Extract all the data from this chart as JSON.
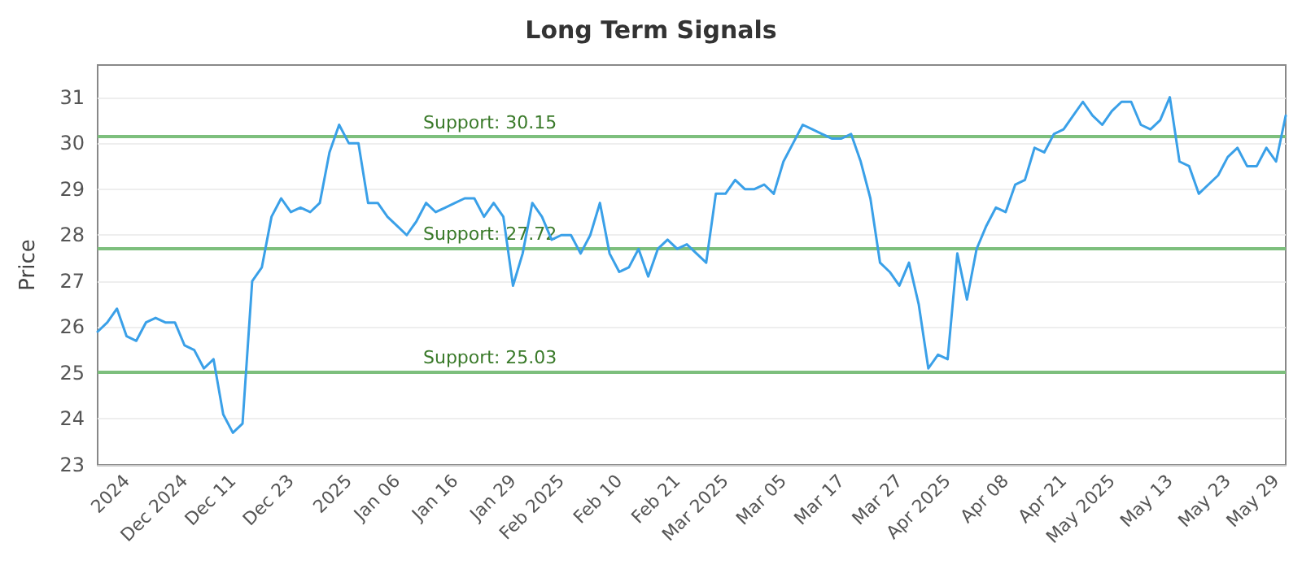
{
  "chart_data": {
    "type": "line",
    "title": "Long Term Signals",
    "ylabel": "Price",
    "categories": [
      null,
      null,
      null,
      "2024",
      null,
      null,
      null,
      null,
      null,
      "Dec 2024",
      null,
      null,
      null,
      null,
      "Dec 11",
      null,
      null,
      null,
      null,
      null,
      "Dec 23",
      null,
      null,
      null,
      null,
      null,
      "2025",
      null,
      null,
      null,
      null,
      "Jan 06",
      null,
      null,
      null,
      null,
      null,
      "Jan 16",
      null,
      null,
      null,
      null,
      null,
      "Jan 29",
      null,
      null,
      null,
      null,
      "Feb 2025",
      null,
      null,
      null,
      null,
      null,
      "Feb 10",
      null,
      null,
      null,
      null,
      null,
      "Feb 21",
      null,
      null,
      null,
      null,
      "Mar 2025",
      null,
      null,
      null,
      null,
      null,
      "Mar 05",
      null,
      null,
      null,
      null,
      null,
      "Mar 17",
      null,
      null,
      null,
      null,
      null,
      "Mar 27",
      null,
      null,
      null,
      null,
      "Apr 2025",
      null,
      null,
      null,
      null,
      null,
      "Apr 08",
      null,
      null,
      null,
      null,
      null,
      "Apr 21",
      null,
      null,
      null,
      null,
      "May 2025",
      null,
      null,
      null,
      null,
      null,
      "May 13",
      null,
      null,
      null,
      null,
      null,
      "May 23",
      null,
      null,
      null,
      null,
      "May 29",
      null
    ],
    "series": [
      {
        "color": "#3aa0e8",
        "values": [
          25.9,
          26.1,
          26.4,
          25.8,
          25.7,
          26.1,
          26.2,
          26.1,
          26.1,
          25.6,
          25.5,
          25.1,
          25.3,
          24.1,
          23.7,
          23.9,
          27.0,
          27.3,
          28.4,
          28.8,
          28.5,
          28.6,
          28.5,
          28.7,
          29.8,
          30.4,
          30.0,
          30.0,
          28.7,
          28.7,
          28.4,
          28.2,
          28.0,
          28.3,
          28.7,
          28.5,
          28.6,
          28.7,
          28.8,
          28.8,
          28.4,
          28.7,
          28.4,
          26.9,
          27.6,
          28.7,
          28.4,
          27.9,
          28.0,
          28.0,
          27.6,
          28.0,
          28.7,
          27.6,
          27.2,
          27.3,
          27.7,
          27.1,
          27.7,
          27.9,
          27.7,
          27.8,
          27.6,
          27.4,
          28.9,
          28.9,
          29.2,
          29.0,
          29.0,
          29.1,
          28.9,
          29.6,
          30.0,
          30.4,
          30.3,
          30.2,
          30.1,
          30.1,
          30.2,
          29.6,
          28.8,
          27.4,
          27.2,
          26.9,
          27.4,
          26.5,
          25.1,
          25.4,
          25.3,
          27.6,
          26.6,
          27.7,
          28.2,
          28.6,
          28.5,
          29.1,
          29.2,
          29.9,
          29.8,
          30.2,
          30.3,
          30.6,
          30.9,
          30.6,
          30.4,
          30.7,
          30.9,
          30.9,
          30.4,
          30.3,
          30.5,
          31.0,
          29.6,
          29.5,
          28.9,
          29.1,
          29.3,
          29.7,
          29.9,
          29.5,
          29.5,
          29.9,
          29.6,
          30.6
        ]
      }
    ],
    "ylim": [
      23,
      31.7
    ],
    "yticks": [
      23,
      24,
      25,
      26,
      27,
      28,
      29,
      30,
      31
    ],
    "grid": "y",
    "marker": "none",
    "line_style": "solid",
    "ref_lines": [
      {
        "axis": "y",
        "value": 30.15,
        "label": "Support: 30.15",
        "color": "#7dbf7d"
      },
      {
        "axis": "y",
        "value": 27.72,
        "label": "Support: 27.72",
        "color": "#7dbf7d"
      },
      {
        "axis": "y",
        "value": 25.03,
        "label": "Support: 25.03",
        "color": "#7dbf7d"
      }
    ]
  }
}
